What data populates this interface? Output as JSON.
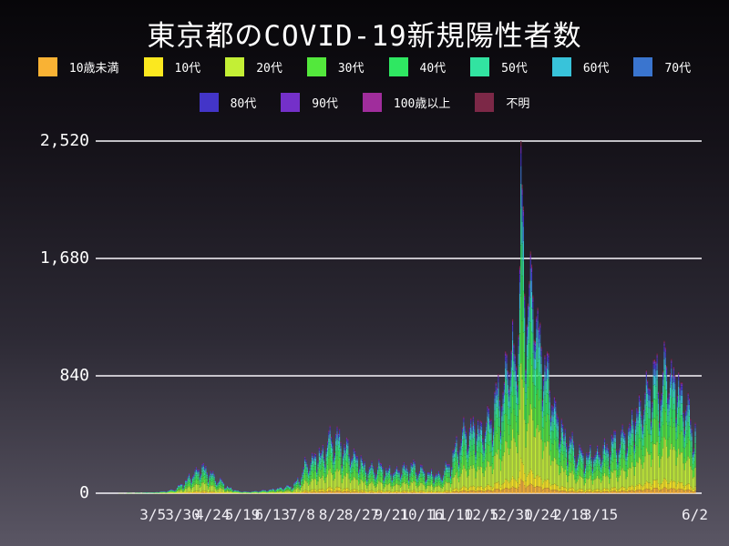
{
  "title": "東京都のCOVID-19新規陽性者数",
  "colors": {
    "background_top": "#070609",
    "background_bottom": "#5a5664",
    "grid_line": "#eceaf0",
    "axis_text": "#ffffff",
    "tick_text": "#f0eef4",
    "bar_border": "#0a0c14"
  },
  "legend": {
    "rows": [
      [
        0,
        1,
        2,
        3,
        4,
        5,
        6,
        7
      ],
      [
        8,
        9,
        10,
        11
      ]
    ],
    "items": [
      {
        "label": "10歳未満",
        "color": "#f9b234"
      },
      {
        "label": "10代",
        "color": "#fbe81f"
      },
      {
        "label": "20代",
        "color": "#c3ef35"
      },
      {
        "label": "30代",
        "color": "#53e83c"
      },
      {
        "label": "40代",
        "color": "#2fe762"
      },
      {
        "label": "50代",
        "color": "#32e3a1"
      },
      {
        "label": "60代",
        "color": "#38c3da"
      },
      {
        "label": "70代",
        "color": "#3a75cf"
      },
      {
        "label": "80代",
        "color": "#4335c8"
      },
      {
        "label": "90代",
        "color": "#7430c9"
      },
      {
        "label": "100歳以上",
        "color": "#a02d9c"
      },
      {
        "label": "不明",
        "color": "#7c2847"
      }
    ]
  },
  "chart_data": {
    "type": "area",
    "stacked": true,
    "title": "東京都のCOVID-19新規陽性者数",
    "xlabel": "",
    "ylabel": "",
    "grid": true,
    "legend_position": "top",
    "ylim": [
      0,
      2520
    ],
    "x_range": [
      "2020-02-01",
      "2021-06-02"
    ],
    "y_ticks": [
      {
        "value": 0,
        "label": "0"
      },
      {
        "value": 840,
        "label": "840"
      },
      {
        "value": 1680,
        "label": "1,680"
      },
      {
        "value": 2520,
        "label": "2,520"
      }
    ],
    "x_ticks": [
      {
        "date": "2020-03-05",
        "label": "3/5"
      },
      {
        "date": "2020-03-30",
        "label": "3/30"
      },
      {
        "date": "2020-04-24",
        "label": "4/24"
      },
      {
        "date": "2020-05-19",
        "label": "5/19"
      },
      {
        "date": "2020-06-13",
        "label": "6/13"
      },
      {
        "date": "2020-07-08",
        "label": "7/8"
      },
      {
        "date": "2020-08-02",
        "label": "8/2"
      },
      {
        "date": "2020-08-27",
        "label": "8/27"
      },
      {
        "date": "2020-09-21",
        "label": "9/21"
      },
      {
        "date": "2020-10-16",
        "label": "10/16"
      },
      {
        "date": "2020-11-10",
        "label": "11/10"
      },
      {
        "date": "2020-12-05",
        "label": "12/5"
      },
      {
        "date": "2020-12-30",
        "label": "12/30"
      },
      {
        "date": "2021-01-24",
        "label": "1/24"
      },
      {
        "date": "2021-02-18",
        "label": "2/18"
      },
      {
        "date": "2021-03-15",
        "label": "3/15"
      },
      {
        "date": "2021-06-02",
        "label": "6/2"
      }
    ],
    "age_groups_bottom_to_top": [
      {
        "name": "10歳未満",
        "color": "#f9b234",
        "share": 0.04
      },
      {
        "name": "10代",
        "color": "#fbe81f",
        "share": 0.06
      },
      {
        "name": "20代",
        "color": "#c3ef35",
        "share": 0.27
      },
      {
        "name": "30代",
        "color": "#53e83c",
        "share": 0.19
      },
      {
        "name": "40代",
        "color": "#2fe762",
        "share": 0.145
      },
      {
        "name": "50代",
        "color": "#32e3a1",
        "share": 0.105
      },
      {
        "name": "60代",
        "color": "#38c3da",
        "share": 0.07
      },
      {
        "name": "70代",
        "color": "#3a75cf",
        "share": 0.05
      },
      {
        "name": "80代",
        "color": "#4335c8",
        "share": 0.035
      },
      {
        "name": "90代",
        "color": "#7430c9",
        "share": 0.018
      },
      {
        "name": "100歳以上",
        "color": "#a02d9c",
        "share": 0.004
      },
      {
        "name": "不明",
        "color": "#7c2847",
        "share": 0.013
      }
    ],
    "daily_totals_keypoints": [
      [
        "2020-02-01",
        1
      ],
      [
        "2020-02-14",
        2
      ],
      [
        "2020-02-25",
        3
      ],
      [
        "2020-03-05",
        6
      ],
      [
        "2020-03-15",
        14
      ],
      [
        "2020-03-22",
        26
      ],
      [
        "2020-03-28",
        60
      ],
      [
        "2020-04-04",
        117
      ],
      [
        "2020-04-11",
        180
      ],
      [
        "2020-04-17",
        192
      ],
      [
        "2020-04-24",
        130
      ],
      [
        "2020-05-01",
        88
      ],
      [
        "2020-05-08",
        39
      ],
      [
        "2020-05-16",
        14
      ],
      [
        "2020-05-24",
        10
      ],
      [
        "2020-06-01",
        16
      ],
      [
        "2020-06-10",
        25
      ],
      [
        "2020-06-20",
        42
      ],
      [
        "2020-06-30",
        58
      ],
      [
        "2020-07-05",
        102
      ],
      [
        "2020-07-10",
        210
      ],
      [
        "2020-07-17",
        270
      ],
      [
        "2020-07-24",
        300
      ],
      [
        "2020-08-01",
        420
      ],
      [
        "2020-08-07",
        400
      ],
      [
        "2020-08-15",
        330
      ],
      [
        "2020-08-22",
        280
      ],
      [
        "2020-09-01",
        180
      ],
      [
        "2020-09-10",
        200
      ],
      [
        "2020-09-20",
        160
      ],
      [
        "2020-10-01",
        190
      ],
      [
        "2020-10-10",
        200
      ],
      [
        "2020-10-20",
        150
      ],
      [
        "2020-11-01",
        140
      ],
      [
        "2020-11-10",
        250
      ],
      [
        "2020-11-18",
        430
      ],
      [
        "2020-11-27",
        500
      ],
      [
        "2020-12-05",
        480
      ],
      [
        "2020-12-12",
        550
      ],
      [
        "2020-12-17",
        700
      ],
      [
        "2020-12-23",
        760
      ],
      [
        "2020-12-31",
        1150
      ],
      [
        "2021-01-03",
        900
      ],
      [
        "2021-01-06",
        1500
      ],
      [
        "2021-01-07",
        2520
      ],
      [
        "2021-01-08",
        2200
      ],
      [
        "2021-01-09",
        1950
      ],
      [
        "2021-01-11",
        1250
      ],
      [
        "2021-01-14",
        1400
      ],
      [
        "2021-01-16",
        1650
      ],
      [
        "2021-01-21",
        1150
      ],
      [
        "2021-01-28",
        950
      ],
      [
        "2021-02-04",
        650
      ],
      [
        "2021-02-11",
        450
      ],
      [
        "2021-02-18",
        370
      ],
      [
        "2021-02-25",
        290
      ],
      [
        "2021-03-04",
        280
      ],
      [
        "2021-03-11",
        300
      ],
      [
        "2021-03-18",
        330
      ],
      [
        "2021-03-25",
        380
      ],
      [
        "2021-04-01",
        400
      ],
      [
        "2021-04-08",
        480
      ],
      [
        "2021-04-15",
        620
      ],
      [
        "2021-04-22",
        740
      ],
      [
        "2021-04-29",
        880
      ],
      [
        "2021-05-05",
        780
      ],
      [
        "2021-05-08",
        980
      ],
      [
        "2021-05-12",
        900
      ],
      [
        "2021-05-15",
        850
      ],
      [
        "2021-05-20",
        780
      ],
      [
        "2021-05-27",
        620
      ],
      [
        "2021-06-01",
        450
      ],
      [
        "2021-06-02",
        470
      ]
    ],
    "weekly_pattern": {
      "Sat": 1.1,
      "Sun": 0.9,
      "Mon": 0.56,
      "Tue": 0.78,
      "Wed": 1.02,
      "Thu": 1.1,
      "Fri": 1.12
    },
    "peak": {
      "date": "2021-01-07",
      "value": 2520
    }
  }
}
